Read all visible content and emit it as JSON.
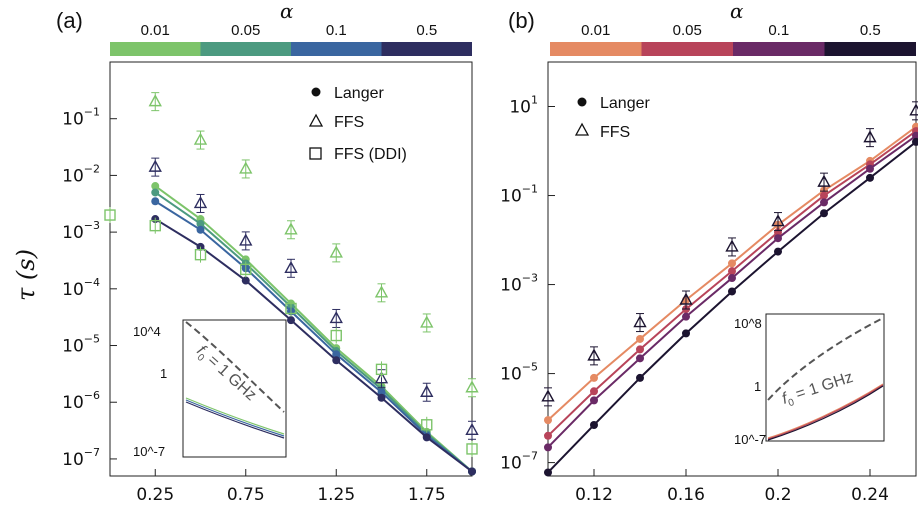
{
  "chart_data": [
    {
      "panel": "(a)",
      "type": "scatter",
      "ylabel": "τ (s)",
      "yscale": "log",
      "xlim": [
        0.0,
        2.0
      ],
      "ylim": [
        5e-08,
        1.0
      ],
      "x_ticks": [
        "0.25",
        "0.75",
        "1.25",
        "1.75"
      ],
      "x_tick_values": [
        0.25,
        0.75,
        1.25,
        1.75
      ],
      "y_ticks": [
        -7,
        -6,
        -5,
        -4,
        -3,
        -2,
        -1
      ],
      "colorbar": {
        "title": "α",
        "labels": [
          "0.01",
          "0.05",
          "0.1",
          "0.5"
        ],
        "colors": [
          "#7dc46a",
          "#4c9a80",
          "#3a66a0",
          "#2e2e60"
        ]
      },
      "legend": {
        "position": "top-right",
        "entries": [
          "Langer",
          "FFS",
          "FFS (DDI)"
        ]
      },
      "series": [
        {
          "alpha": "0.01",
          "color": "#7dc46a",
          "kind": "Langer",
          "x": [
            0.25,
            0.5,
            0.75,
            1.0,
            1.25,
            1.5,
            1.75,
            2.0
          ],
          "y": [
            0.0065,
            0.0017,
            0.00033,
            5.5e-05,
            9e-06,
            1.9e-06,
            3e-07,
            6e-08
          ]
        },
        {
          "alpha": "0.05",
          "color": "#4c9a80",
          "kind": "Langer",
          "x": [
            0.25,
            0.5,
            0.75,
            1.0,
            1.25,
            1.5,
            1.75,
            2.0
          ],
          "y": [
            0.005,
            0.0014,
            0.00028,
            4.8e-05,
            8e-06,
            1.7e-06,
            2.8e-07,
            6e-08
          ]
        },
        {
          "alpha": "0.1",
          "color": "#3a66a0",
          "kind": "Langer",
          "x": [
            0.25,
            0.5,
            0.75,
            1.0,
            1.25,
            1.5,
            1.75,
            2.0
          ],
          "y": [
            0.0035,
            0.0011,
            0.00023,
            4e-05,
            7e-06,
            1.5e-06,
            2.6e-07,
            6e-08
          ]
        },
        {
          "alpha": "0.5",
          "color": "#2e2e60",
          "kind": "Langer",
          "x": [
            0.25,
            0.5,
            0.75,
            1.0,
            1.25,
            1.5,
            1.75,
            2.0
          ],
          "y": [
            0.0017,
            0.00055,
            0.00014,
            2.8e-05,
            5.5e-06,
            1.2e-06,
            2.4e-07,
            6e-08
          ]
        },
        {
          "alpha": "0.01",
          "color": "#7dc46a",
          "kind": "FFS",
          "x": [
            0.25,
            0.5,
            0.75,
            1.0,
            1.25,
            1.5,
            1.75,
            2.0
          ],
          "y": [
            0.2,
            0.042,
            0.013,
            0.0011,
            0.00043,
            8.5e-05,
            2.5e-05,
            1.8e-06
          ]
        },
        {
          "alpha": "0.5",
          "color": "#2e2e60",
          "kind": "FFS",
          "x": [
            0.25,
            0.5,
            0.75,
            1.0,
            1.25,
            1.5,
            1.75,
            2.0
          ],
          "y": [
            0.014,
            0.0032,
            0.0007,
            0.00023,
            3e-05,
            2.6e-06,
            1.5e-06,
            3.2e-07
          ]
        },
        {
          "alpha": "0.01",
          "color": "#7dc46a",
          "kind": "FFS (DDI)",
          "x": [
            0.0,
            0.25,
            0.5,
            0.75,
            1.0,
            1.25,
            1.5,
            1.75,
            2.0
          ],
          "y": [
            0.002,
            0.0013,
            0.0004,
            0.00022,
            4.5e-05,
            1.5e-05,
            3.8e-06,
            4e-07,
            1.5e-07
          ]
        }
      ],
      "inset": {
        "y_ticks": [
          "10^4",
          "1",
          "10^-7"
        ],
        "annotation": "f0 = 1 GHz"
      }
    },
    {
      "panel": "(b)",
      "type": "scatter",
      "yscale": "log",
      "xlim": [
        0.1,
        0.26
      ],
      "ylim": [
        5e-08,
        100
      ],
      "x_ticks": [
        "0.12",
        "0.16",
        "0.2",
        "0.24"
      ],
      "x_tick_values": [
        0.12,
        0.16,
        0.2,
        0.24
      ],
      "y_ticks": [
        -7,
        -5,
        -3,
        -1,
        1
      ],
      "colorbar": {
        "title": "α",
        "labels": [
          "0.01",
          "0.05",
          "0.1",
          "0.5"
        ],
        "colors": [
          "#e58a63",
          "#b8445a",
          "#6a2a66",
          "#1c1430"
        ]
      },
      "legend": {
        "position": "top-left",
        "entries": [
          "Langer",
          "FFS"
        ]
      },
      "series": [
        {
          "alpha": "0.01",
          "color": "#e58a63",
          "kind": "Langer",
          "x": [
            0.1,
            0.12,
            0.14,
            0.16,
            0.18,
            0.2,
            0.22,
            0.24,
            0.26
          ],
          "y": [
            9e-07,
            8e-06,
            6e-05,
            0.00045,
            0.003,
            0.022,
            0.13,
            0.6,
            3.5
          ]
        },
        {
          "alpha": "0.05",
          "color": "#b8445a",
          "kind": "Langer",
          "x": [
            0.1,
            0.12,
            0.14,
            0.16,
            0.18,
            0.2,
            0.22,
            0.24,
            0.26
          ],
          "y": [
            4e-07,
            4e-06,
            3.5e-05,
            0.00028,
            0.002,
            0.015,
            0.1,
            0.5,
            2.8
          ]
        },
        {
          "alpha": "0.1",
          "color": "#6a2a66",
          "kind": "Langer",
          "x": [
            0.1,
            0.12,
            0.14,
            0.16,
            0.18,
            0.2,
            0.22,
            0.24,
            0.26
          ],
          "y": [
            2.2e-07,
            2.5e-06,
            2.2e-05,
            0.00019,
            0.0014,
            0.011,
            0.07,
            0.4,
            2.2
          ]
        },
        {
          "alpha": "0.5",
          "color": "#1c1430",
          "kind": "Langer",
          "x": [
            0.1,
            0.12,
            0.14,
            0.16,
            0.18,
            0.2,
            0.22,
            0.24,
            0.26
          ],
          "y": [
            6e-08,
            7e-07,
            8e-06,
            8e-05,
            0.0007,
            0.0055,
            0.04,
            0.25,
            1.6
          ]
        },
        {
          "alpha": "0.5",
          "color": "#1c1430",
          "kind": "FFS",
          "x": [
            0.1,
            0.12,
            0.14,
            0.16,
            0.18,
            0.2,
            0.22,
            0.24,
            0.26
          ],
          "y": [
            3e-06,
            2.5e-05,
            0.00014,
            0.00045,
            0.007,
            0.026,
            0.2,
            2.0,
            8
          ]
        }
      ],
      "inset": {
        "y_ticks": [
          "10^8",
          "1",
          "10^-7"
        ],
        "annotation": "f0 = 1 GHz"
      }
    }
  ]
}
